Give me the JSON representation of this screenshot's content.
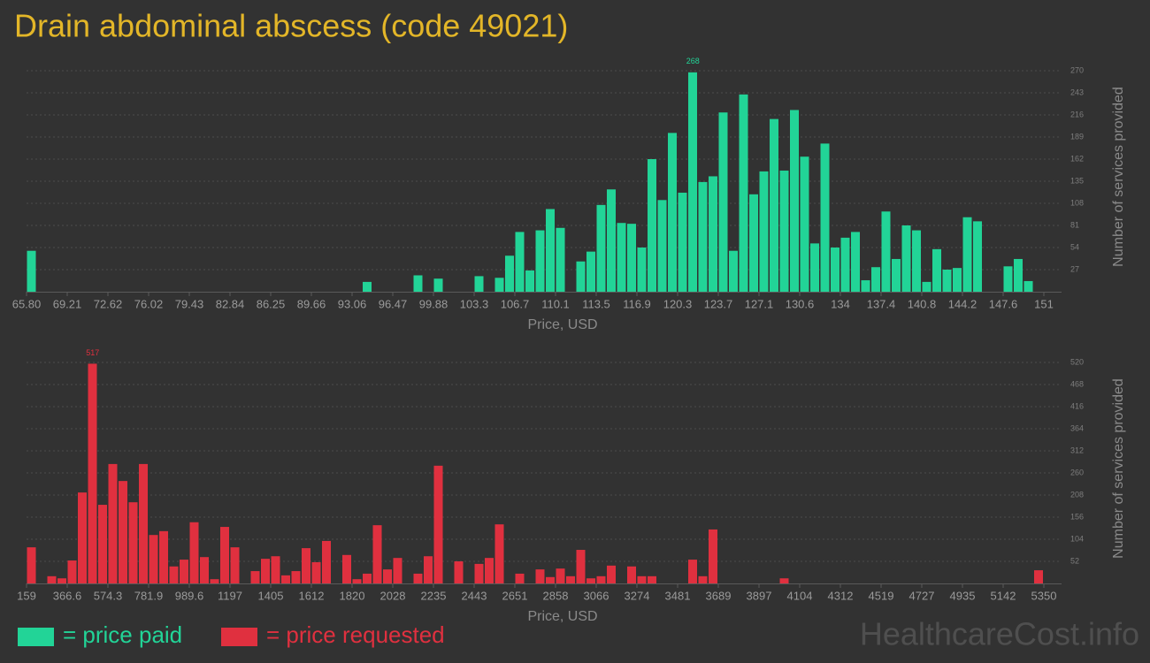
{
  "title": "Drain abdominal abscess (code 49021)",
  "watermark": "HealthcareCost.info",
  "chart_data": [
    {
      "type": "histogram",
      "xlabel": "Price, USD",
      "ylabel": "Number of services provided",
      "bins": [
        65.8,
        66.652,
        67.504,
        68.356,
        69.208,
        70.06,
        70.912,
        71.764,
        72.616,
        73.468,
        74.32,
        75.172,
        76.024,
        76.876,
        77.728,
        78.58,
        79.432,
        80.284,
        81.136,
        81.988,
        82.84,
        83.692,
        84.544,
        85.396,
        86.248,
        87.1,
        87.952,
        88.804,
        89.656,
        90.508,
        91.36,
        92.212,
        93.064,
        93.916,
        94.768,
        95.62,
        96.472,
        97.324,
        98.176,
        99.028,
        99.88,
        100.732,
        101.584,
        102.436,
        103.288,
        104.14,
        104.992,
        105.844,
        106.696,
        107.548,
        108.4,
        109.252,
        110.104,
        110.956,
        111.808,
        112.66,
        113.512,
        114.364,
        115.216,
        116.068,
        116.92,
        117.772,
        118.624,
        119.476,
        120.328,
        121.18,
        122.032,
        122.884,
        123.736,
        124.588,
        125.44,
        126.292,
        127.144,
        127.996,
        128.848,
        129.7,
        130.552,
        131.404,
        132.256,
        133.108,
        133.96,
        134.812,
        135.664,
        136.516,
        137.368,
        138.22,
        139.072,
        139.924,
        140.776,
        141.628,
        142.48,
        143.332,
        144.184,
        145.036,
        145.888,
        146.74,
        147.592,
        148.444,
        149.296,
        150.148,
        151
      ],
      "series": [
        {
          "name": "= price paid",
          "color": "#22d497",
          "values": [
            50,
            0,
            0,
            0,
            0,
            0,
            0,
            0,
            0,
            0,
            0,
            0,
            0,
            0,
            0,
            0,
            0,
            0,
            0,
            0,
            0,
            0,
            0,
            0,
            0,
            0,
            0,
            0,
            0,
            0,
            0,
            0,
            0,
            12,
            0,
            0,
            0,
            0,
            20,
            0,
            16,
            0,
            0,
            0,
            19,
            0,
            17,
            44,
            73,
            26,
            75,
            101,
            78,
            0,
            37,
            49,
            106,
            125,
            84,
            83,
            54,
            162,
            112,
            194,
            121,
            268,
            134,
            141,
            219,
            50,
            241,
            119,
            147,
            211,
            148,
            222,
            165,
            59,
            181,
            54,
            66,
            73,
            14,
            30,
            98,
            40,
            81,
            75,
            12,
            52,
            27,
            29,
            91,
            86,
            0,
            0,
            31,
            40,
            13,
            0
          ]
        }
      ],
      "xlim": [
        65.8,
        151
      ],
      "xticks": [
        {
          "value": 65.8,
          "label": "65.80"
        },
        {
          "value": 69.208,
          "label": "69.21"
        },
        {
          "value": 72.616,
          "label": "72.62"
        },
        {
          "value": 76.024,
          "label": "76.02"
        },
        {
          "value": 79.432,
          "label": "79.43"
        },
        {
          "value": 82.84,
          "label": "82.84"
        },
        {
          "value": 86.248,
          "label": "86.25"
        },
        {
          "value": 89.656,
          "label": "89.66"
        },
        {
          "value": 93.064,
          "label": "93.06"
        },
        {
          "value": 96.472,
          "label": "96.47"
        },
        {
          "value": 99.88,
          "label": "99.88"
        },
        {
          "value": 103.288,
          "label": "103.3"
        },
        {
          "value": 106.696,
          "label": "106.7"
        },
        {
          "value": 110.104,
          "label": "110.1"
        },
        {
          "value": 113.512,
          "label": "113.5"
        },
        {
          "value": 116.92,
          "label": "116.9"
        },
        {
          "value": 120.328,
          "label": "120.3"
        },
        {
          "value": 123.736,
          "label": "123.7"
        },
        {
          "value": 127.144,
          "label": "127.1"
        },
        {
          "value": 130.552,
          "label": "130.6"
        },
        {
          "value": 133.96,
          "label": "134"
        },
        {
          "value": 137.368,
          "label": "137.4"
        },
        {
          "value": 140.776,
          "label": "140.8"
        },
        {
          "value": 144.184,
          "label": "144.2"
        },
        {
          "value": 147.592,
          "label": "147.6"
        },
        151
      ],
      "ylim": [
        0,
        270
      ],
      "yticks": [
        27,
        54,
        81,
        108,
        135,
        162,
        189,
        216,
        243,
        270
      ],
      "grid": true
    },
    {
      "type": "histogram",
      "xlabel": "Price, USD",
      "ylabel": "Number of services provided",
      "bins": [
        159,
        210.91,
        262.82,
        314.73,
        366.64,
        418.55,
        470.46,
        522.37,
        574.28,
        626.19,
        678.1,
        730.01,
        781.92,
        833.83,
        885.74,
        937.65,
        989.56,
        1041.47,
        1093.38,
        1145.29,
        1197.2,
        1249.11,
        1301.02,
        1352.93,
        1404.84,
        1456.75,
        1508.66,
        1560.57,
        1612.48,
        1664.39,
        1716.3,
        1768.21,
        1820.12,
        1872.03,
        1923.94,
        1975.85,
        2027.76,
        2079.67,
        2131.58,
        2183.49,
        2235.4,
        2287.31,
        2339.22,
        2391.13,
        2443.04,
        2494.95,
        2546.86,
        2598.77,
        2650.68,
        2702.59,
        2754.5,
        2806.41,
        2858.32,
        2910.23,
        2962.14,
        3014.05,
        3065.96,
        3117.87,
        3169.78,
        3221.69,
        3273.6,
        3325.51,
        3377.42,
        3429.33,
        3481.24,
        3533.15,
        3585.06,
        3636.97,
        3688.88,
        3740.79,
        3792.7,
        3844.61,
        3896.52,
        3948.43,
        4000.34,
        4052.25,
        4104.16,
        4156.07,
        4207.98,
        4259.89,
        4311.8,
        4363.71,
        4415.62,
        4467.53,
        4519.44,
        4571.35,
        4623.26,
        4675.17,
        4727.08,
        4778.99,
        4830.9,
        4882.81,
        4934.72,
        4986.63,
        5038.54,
        5090.45,
        5142.36,
        5194.27,
        5246.18,
        5298.09,
        5350
      ],
      "series": [
        {
          "name": "= price requested",
          "color": "#e0303f",
          "values": [
            85,
            0,
            17,
            12,
            54,
            214,
            517,
            185,
            281,
            241,
            191,
            281,
            114,
            123,
            40,
            56,
            144,
            62,
            10,
            133,
            85,
            0,
            29,
            58,
            64,
            19,
            29,
            83,
            50,
            100,
            0,
            67,
            10,
            23,
            137,
            33,
            60,
            0,
            23,
            64,
            277,
            0,
            52,
            0,
            46,
            60,
            139,
            0,
            23,
            0,
            33,
            15,
            35,
            17,
            79,
            12,
            17,
            42,
            0,
            40,
            17,
            17,
            0,
            0,
            0,
            56,
            17,
            127,
            0,
            0,
            0,
            0,
            0,
            0,
            12,
            0,
            0,
            0,
            0,
            0,
            0,
            0,
            0,
            0,
            0,
            0,
            0,
            0,
            0,
            0,
            0,
            0,
            0,
            0,
            0,
            0,
            0,
            0,
            0,
            31
          ]
        }
      ],
      "xlim": [
        159,
        5350
      ],
      "xticks": [
        159,
        {
          "value": 366.64,
          "label": "366.6"
        },
        {
          "value": 574.28,
          "label": "574.3"
        },
        {
          "value": 781.92,
          "label": "781.9"
        },
        {
          "value": 989.56,
          "label": "989.6"
        },
        {
          "value": 1197.2,
          "label": "1197"
        },
        {
          "value": 1404.84,
          "label": "1405"
        },
        {
          "value": 1612.48,
          "label": "1612"
        },
        {
          "value": 1820.12,
          "label": "1820"
        },
        {
          "value": 2027.76,
          "label": "2028"
        },
        {
          "value": 2235.4,
          "label": "2235"
        },
        {
          "value": 2443.04,
          "label": "2443"
        },
        {
          "value": 2650.68,
          "label": "2651"
        },
        {
          "value": 2858.32,
          "label": "2858"
        },
        {
          "value": 3065.96,
          "label": "3066"
        },
        {
          "value": 3273.6,
          "label": "3274"
        },
        {
          "value": 3481.24,
          "label": "3481"
        },
        {
          "value": 3688.88,
          "label": "3689"
        },
        {
          "value": 3896.52,
          "label": "3897"
        },
        {
          "value": 4104.16,
          "label": "4104"
        },
        {
          "value": 4311.8,
          "label": "4312"
        },
        {
          "value": 4519.44,
          "label": "4519"
        },
        {
          "value": 4727.08,
          "label": "4727"
        },
        {
          "value": 4934.72,
          "label": "4935"
        },
        {
          "value": 5142.36,
          "label": "5142"
        },
        5350
      ],
      "ylim": [
        0,
        520
      ],
      "yticks": [
        52,
        104,
        156,
        208,
        260,
        312,
        364,
        416,
        468,
        520
      ],
      "grid": true
    }
  ]
}
